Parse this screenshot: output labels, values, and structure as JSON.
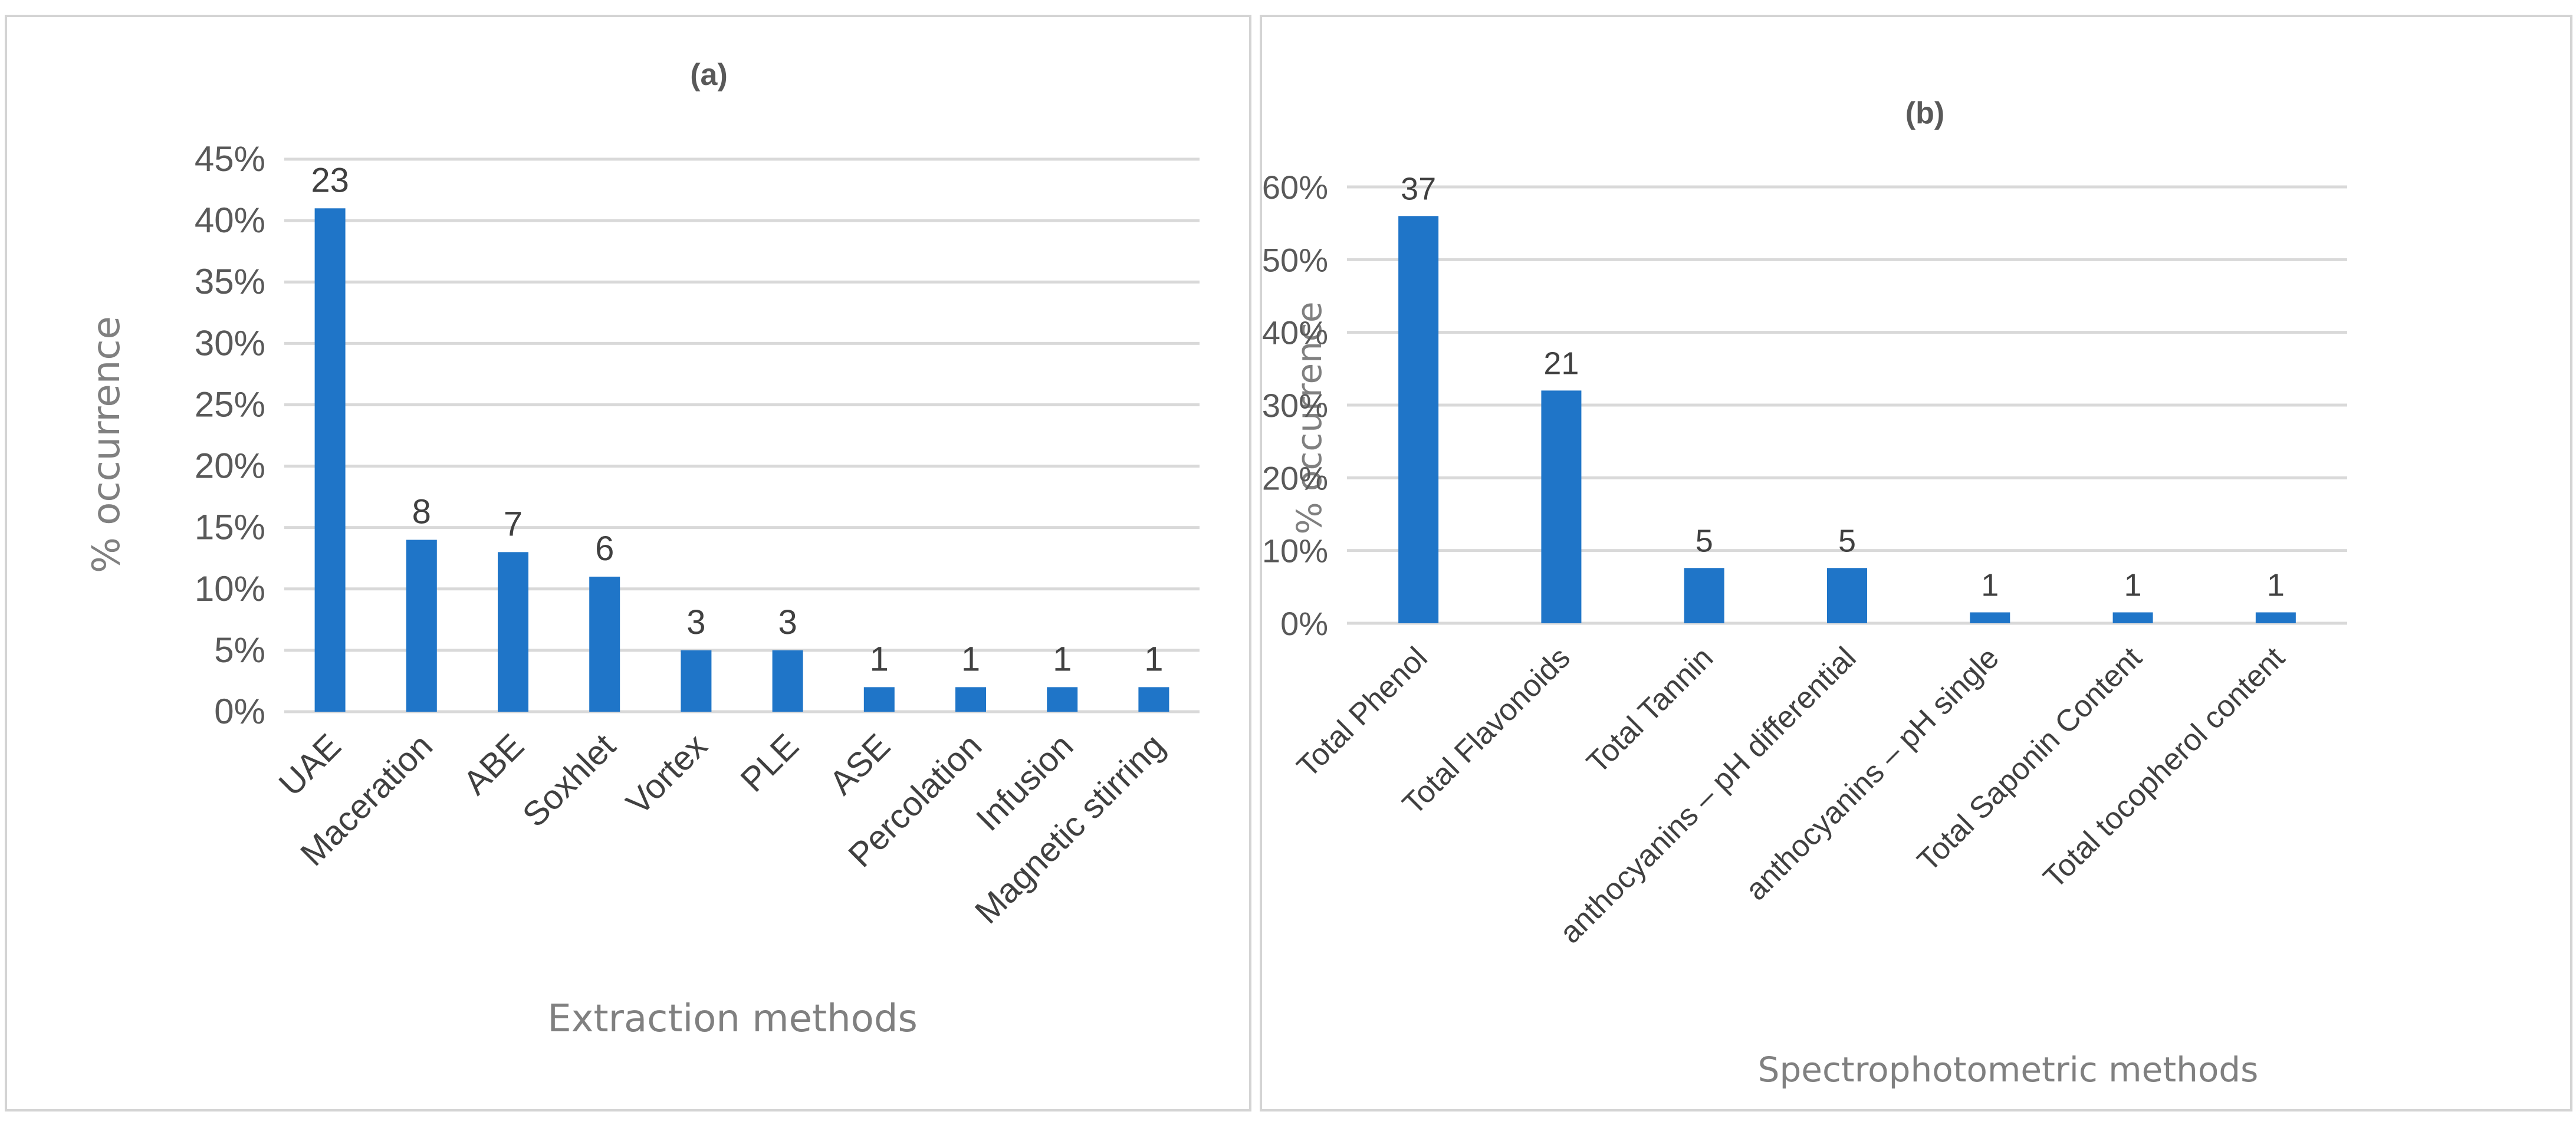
{
  "chart_data": [
    {
      "type": "bar",
      "title": "(a)",
      "xlabel": "Extraction methods",
      "ylabel": "% occurrence",
      "ylim": [
        0,
        45
      ],
      "yticks": [
        "0%",
        "5%",
        "10%",
        "15%",
        "20%",
        "25%",
        "30%",
        "35%",
        "40%",
        "45%"
      ],
      "grid": true,
      "categories": [
        "UAE",
        "Maceration",
        "ABE",
        "Soxhlet",
        "Vortex",
        "PLE",
        "ASE",
        "Percolation",
        "Infusion",
        "Magnetic stirring"
      ],
      "values": [
        41,
        14,
        13,
        11,
        5,
        5,
        2,
        2,
        2,
        2
      ],
      "data_labels": [
        "23",
        "8",
        "7",
        "6",
        "3",
        "3",
        "1",
        "1",
        "1",
        "1"
      ],
      "bar_color": "#1f75c8"
    },
    {
      "type": "bar",
      "title": "(b)",
      "xlabel": "Spectrophotometric methods",
      "ylabel": "% occurrence",
      "ylim": [
        0,
        60
      ],
      "yticks": [
        "0%",
        "10%",
        "20%",
        "30%",
        "40%",
        "50%",
        "60%"
      ],
      "grid": true,
      "categories": [
        "Total Phenol",
        "Total Flavonoids",
        "Total Tannin",
        "anthocyanins – pH differential",
        "anthocyanins – pH single",
        "Total Saponin Content",
        "Total tocopherol content"
      ],
      "values": [
        56,
        32,
        7.6,
        7.6,
        1.5,
        1.5,
        1.5
      ],
      "data_labels": [
        "37",
        "21",
        "5",
        "5",
        "1",
        "1",
        "1"
      ],
      "bar_color": "#1f75c8"
    }
  ]
}
